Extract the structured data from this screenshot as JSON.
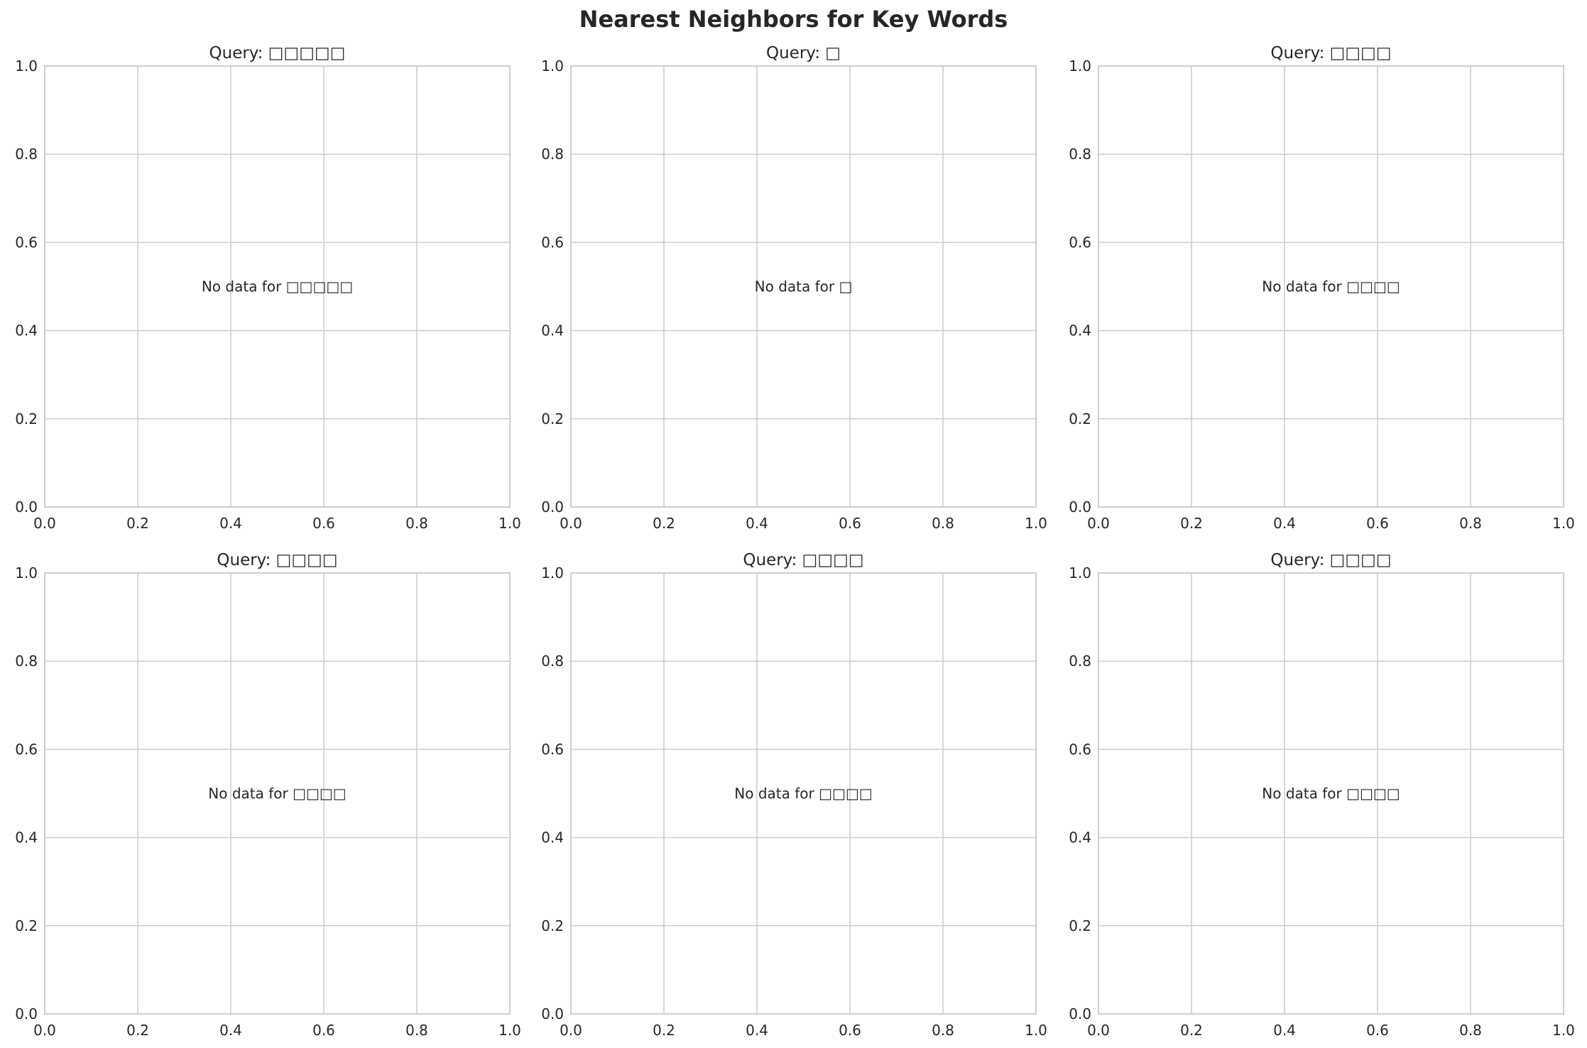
{
  "title": "Nearest Neighbors for Key Words",
  "chart_data": [
    {
      "type": "scatter",
      "title": "Query: □□□□□",
      "message": "No data for □□□□□",
      "xlim": [
        0,
        1
      ],
      "ylim": [
        0,
        1
      ],
      "xticks": [
        "0.0",
        "0.2",
        "0.4",
        "0.6",
        "0.8",
        "1.0"
      ],
      "yticks": [
        "0.0",
        "0.2",
        "0.4",
        "0.6",
        "0.8",
        "1.0"
      ],
      "grid": true,
      "points": []
    },
    {
      "type": "scatter",
      "title": "Query: □",
      "message": "No data for □",
      "xlim": [
        0,
        1
      ],
      "ylim": [
        0,
        1
      ],
      "xticks": [
        "0.0",
        "0.2",
        "0.4",
        "0.6",
        "0.8",
        "1.0"
      ],
      "yticks": [
        "0.0",
        "0.2",
        "0.4",
        "0.6",
        "0.8",
        "1.0"
      ],
      "grid": true,
      "points": []
    },
    {
      "type": "scatter",
      "title": "Query: □□□□",
      "message": "No data for □□□□",
      "xlim": [
        0,
        1
      ],
      "ylim": [
        0,
        1
      ],
      "xticks": [
        "0.0",
        "0.2",
        "0.4",
        "0.6",
        "0.8",
        "1.0"
      ],
      "yticks": [
        "0.0",
        "0.2",
        "0.4",
        "0.6",
        "0.8",
        "1.0"
      ],
      "grid": true,
      "points": []
    },
    {
      "type": "scatter",
      "title": "Query: □□□□",
      "message": "No data for □□□□",
      "xlim": [
        0,
        1
      ],
      "ylim": [
        0,
        1
      ],
      "xticks": [
        "0.0",
        "0.2",
        "0.4",
        "0.6",
        "0.8",
        "1.0"
      ],
      "yticks": [
        "0.0",
        "0.2",
        "0.4",
        "0.6",
        "0.8",
        "1.0"
      ],
      "grid": true,
      "points": []
    },
    {
      "type": "scatter",
      "title": "Query: □□□□",
      "message": "No data for □□□□",
      "xlim": [
        0,
        1
      ],
      "ylim": [
        0,
        1
      ],
      "xticks": [
        "0.0",
        "0.2",
        "0.4",
        "0.6",
        "0.8",
        "1.0"
      ],
      "yticks": [
        "0.0",
        "0.2",
        "0.4",
        "0.6",
        "0.8",
        "1.0"
      ],
      "grid": true,
      "points": []
    },
    {
      "type": "scatter",
      "title": "Query: □□□□",
      "message": "No data for □□□□",
      "xlim": [
        0,
        1
      ],
      "ylim": [
        0,
        1
      ],
      "xticks": [
        "0.0",
        "0.2",
        "0.4",
        "0.6",
        "0.8",
        "1.0"
      ],
      "yticks": [
        "0.0",
        "0.2",
        "0.4",
        "0.6",
        "0.8",
        "1.0"
      ],
      "grid": true,
      "points": []
    }
  ],
  "colors": {
    "grid": "#cccccc",
    "spine": "#cccccc",
    "text": "#262626"
  }
}
